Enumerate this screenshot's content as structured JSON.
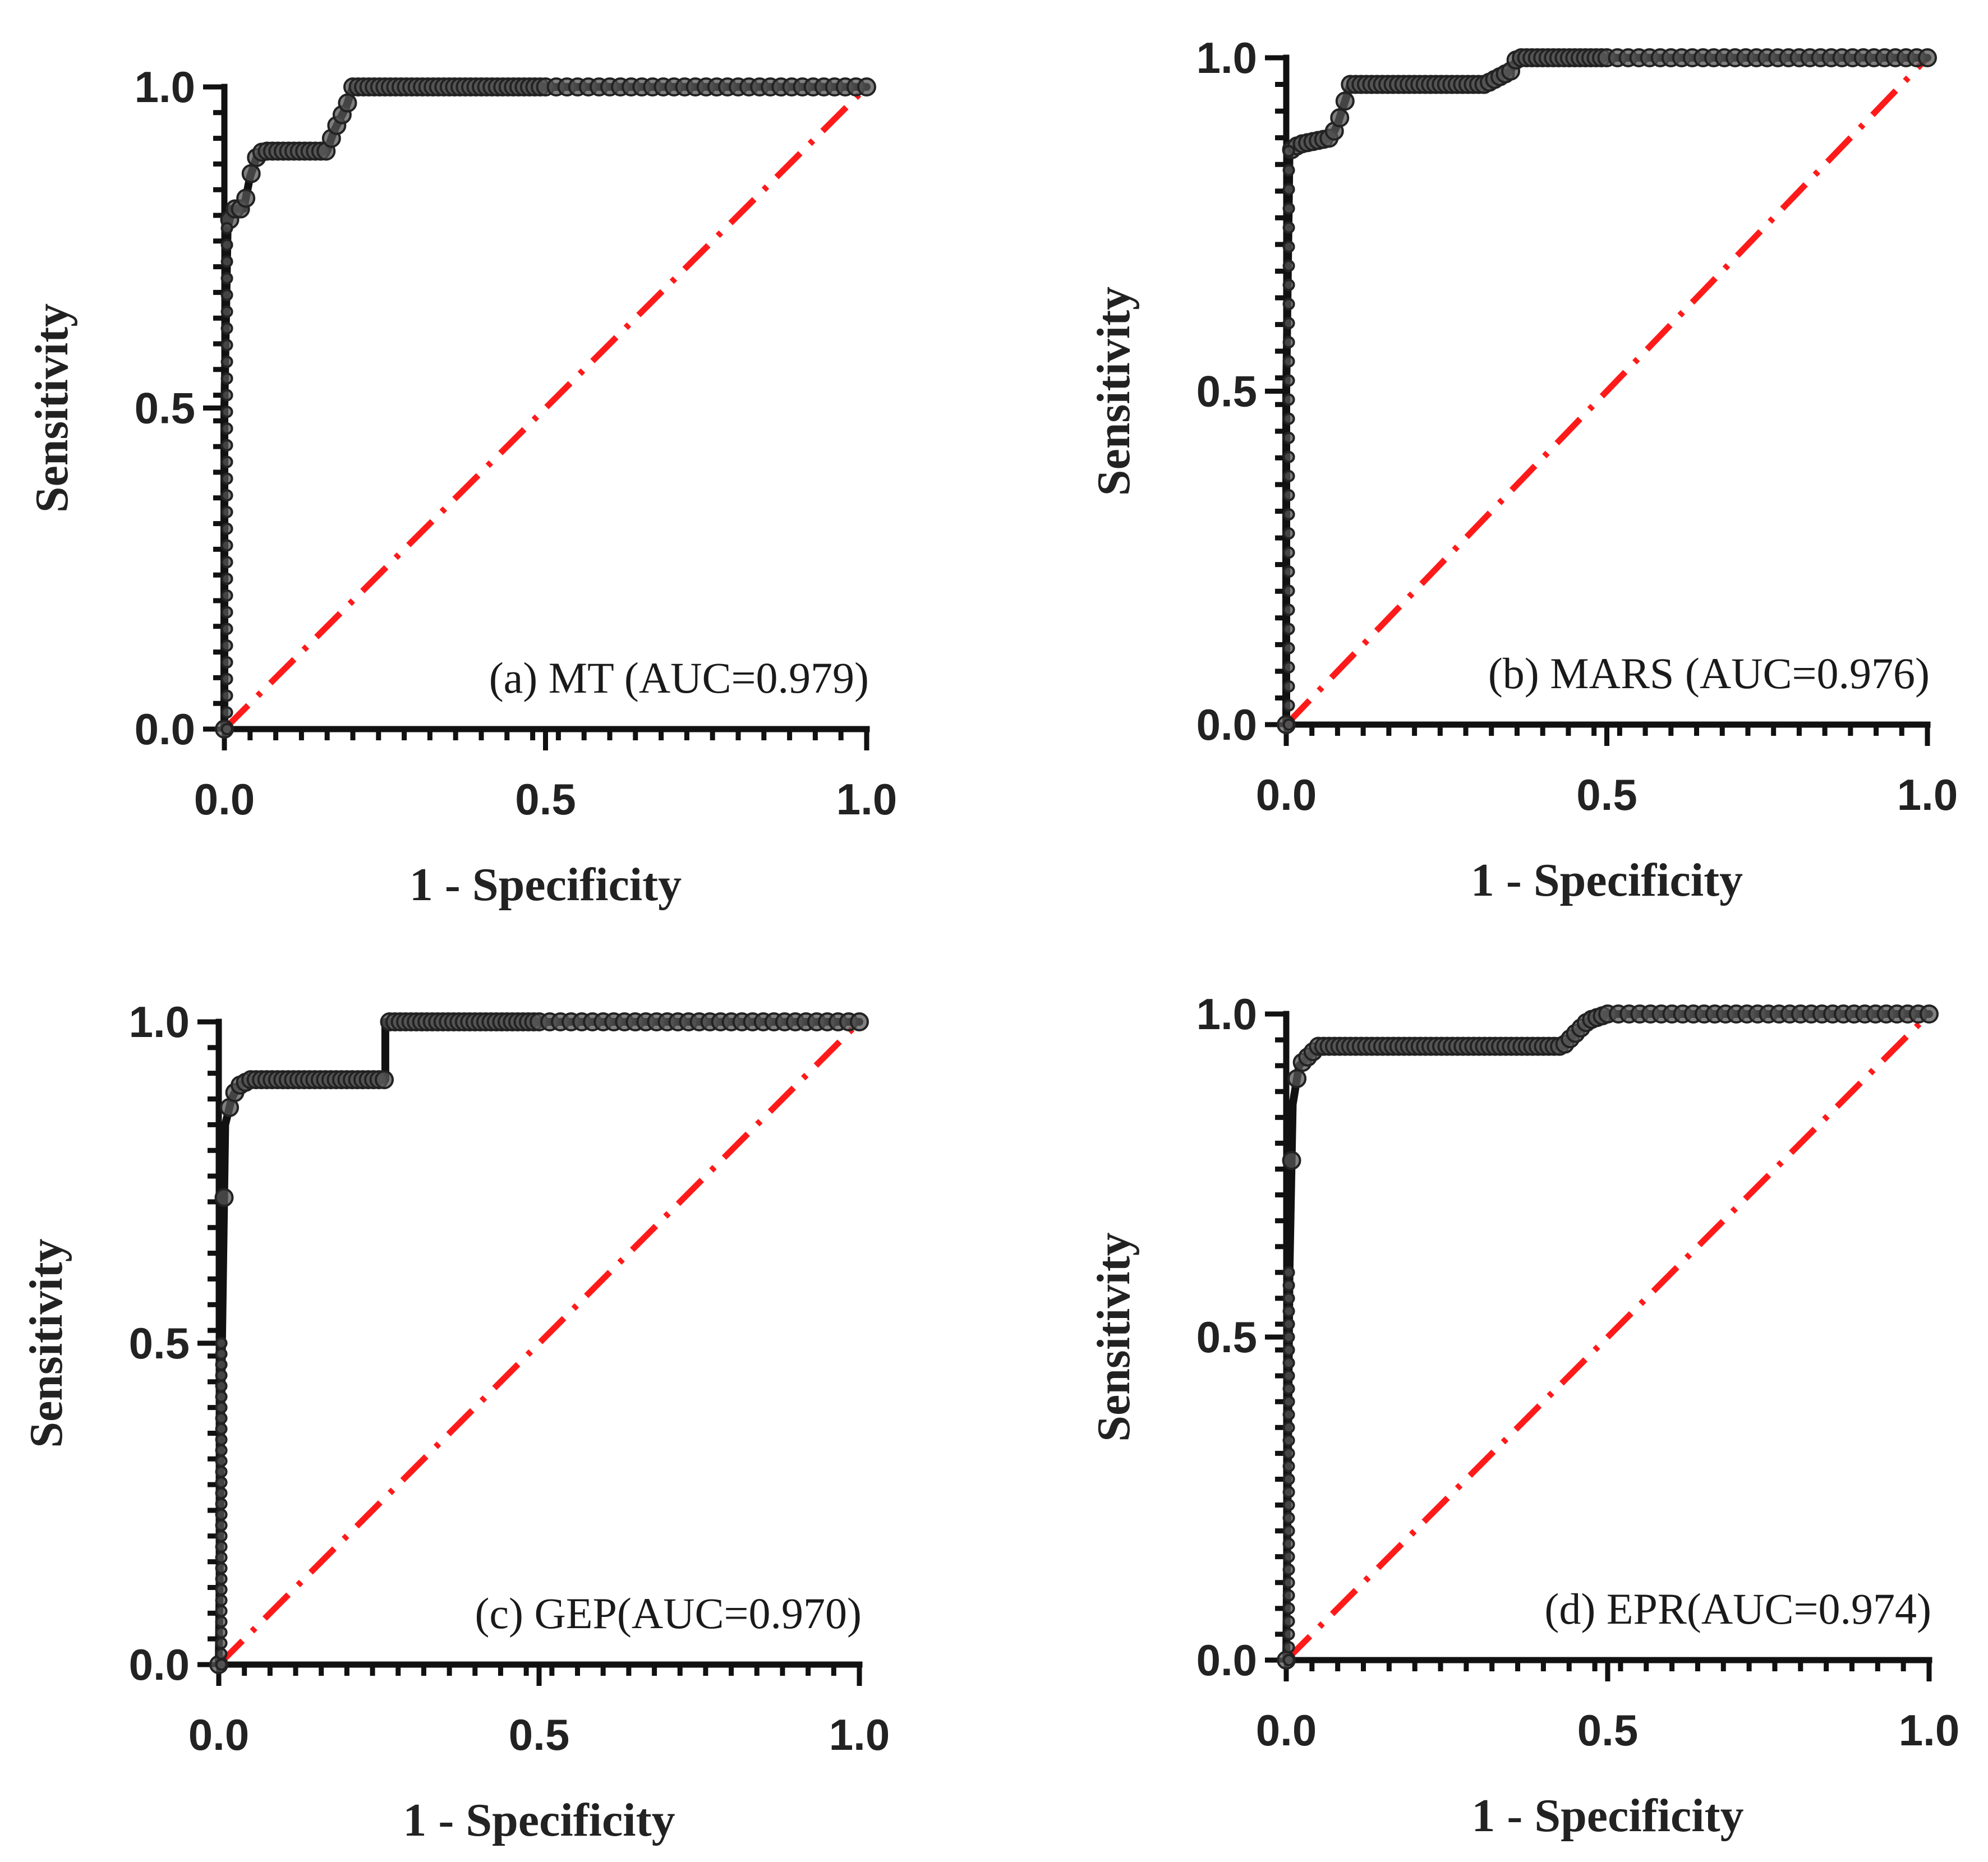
{
  "chart_data": [
    {
      "type": "line",
      "panel": "a",
      "annotation": "(a) MT (AUC=0.979)",
      "xlabel": "1 - Specificity",
      "ylabel": "Sensitivity",
      "xlim": [
        0,
        1
      ],
      "ylim": [
        0,
        1
      ],
      "xticks": [
        "0.0",
        "0.5",
        "1.0"
      ],
      "yticks": [
        "0.0",
        "0.5",
        "1.0"
      ],
      "series": [
        {
          "name": "ROC",
          "color": "#111111",
          "x": [
            0,
            0,
            0.005,
            0.01,
            0.01,
            0.03,
            0.04,
            0.05,
            0.06,
            0.16,
            0.17,
            0.18,
            0.19,
            0.2,
            0.22,
            0.5,
            1.0
          ],
          "y": [
            0,
            0.5,
            0.78,
            0.8,
            0.81,
            0.81,
            0.86,
            0.89,
            0.9,
            0.9,
            0.93,
            0.95,
            0.97,
            1.0,
            1.0,
            1.0,
            1.0
          ]
        },
        {
          "name": "Reference",
          "color": "#ff1a1a",
          "x": [
            0,
            1
          ],
          "y": [
            0,
            1
          ]
        }
      ]
    },
    {
      "type": "line",
      "panel": "b",
      "annotation": "(b) MARS (AUC=0.976)",
      "xlabel": "1 - Specificity",
      "ylabel": "Sensitivity",
      "xlim": [
        0,
        1
      ],
      "ylim": [
        0,
        1
      ],
      "xticks": [
        "0.0",
        "0.5",
        "1.0"
      ],
      "yticks": [
        "0.0",
        "0.5",
        "1.0"
      ],
      "series": [
        {
          "name": "ROC",
          "color": "#111111",
          "x": [
            0,
            0,
            0.005,
            0.02,
            0.07,
            0.08,
            0.09,
            0.1,
            0.12,
            0.31,
            0.33,
            0.35,
            0.36,
            0.38,
            0.5,
            1.0
          ],
          "y": [
            0,
            0.5,
            0.86,
            0.87,
            0.88,
            0.9,
            0.93,
            0.96,
            0.96,
            0.96,
            0.97,
            0.98,
            1.0,
            1.0,
            1.0,
            1.0
          ]
        },
        {
          "name": "Reference",
          "color": "#ff1a1a",
          "x": [
            0,
            1
          ],
          "y": [
            0,
            1
          ]
        }
      ]
    },
    {
      "type": "line",
      "panel": "c",
      "annotation": "(c) GEP(AUC=0.970)",
      "xlabel": "1 - Specificity",
      "ylabel": "Sensitivity",
      "xlim": [
        0,
        1
      ],
      "ylim": [
        0,
        1
      ],
      "xticks": [
        "0.0",
        "0.5",
        "1.0"
      ],
      "yticks": [
        "0.0",
        "0.5",
        "1.0"
      ],
      "series": [
        {
          "name": "ROC",
          "color": "#111111",
          "x": [
            0,
            0.005,
            0.01,
            0.02,
            0.03,
            0.05,
            0.24,
            0.26,
            0.26,
            0.3,
            0.5,
            1.0
          ],
          "y": [
            0,
            0.5,
            0.84,
            0.88,
            0.9,
            0.91,
            0.91,
            0.91,
            1.0,
            1.0,
            1.0,
            1.0
          ]
        },
        {
          "name": "Reference",
          "color": "#ff1a1a",
          "x": [
            0,
            1
          ],
          "y": [
            0,
            1
          ]
        }
      ]
    },
    {
      "type": "line",
      "panel": "d",
      "annotation": "(d) EPR(AUC=0.974)",
      "xlabel": "1 - Specificity",
      "ylabel": "Sensitivity",
      "xlim": [
        0,
        1
      ],
      "ylim": [
        0,
        1
      ],
      "xticks": [
        "0.0",
        "0.5",
        "1.0"
      ],
      "yticks": [
        "0.0",
        "0.5",
        "1.0"
      ],
      "series": [
        {
          "name": "ROC",
          "color": "#111111",
          "x": [
            0,
            0.005,
            0.01,
            0.02,
            0.04,
            0.05,
            0.43,
            0.45,
            0.47,
            0.5,
            1.0
          ],
          "y": [
            0,
            0.6,
            0.86,
            0.92,
            0.94,
            0.95,
            0.95,
            0.97,
            0.99,
            1.0,
            1.0
          ]
        },
        {
          "name": "Reference",
          "color": "#ff1a1a",
          "x": [
            0,
            1
          ],
          "y": [
            0,
            1
          ]
        }
      ]
    }
  ]
}
